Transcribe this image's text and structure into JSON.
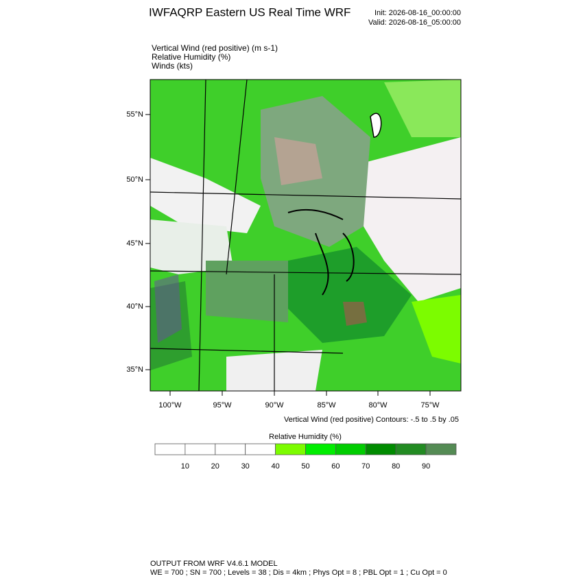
{
  "header": {
    "title": "IWFAQRP Eastern US Real Time WRF",
    "init": "Init: 2026-08-16_00:00:00",
    "valid": "Valid: 2026-08-16_05:00:00"
  },
  "fields": [
    "Vertical Wind (red positive)   (m s-1)",
    "Relative Humidity   (%)",
    "Winds   (kts)"
  ],
  "map": {
    "lat_labels": [
      "55°N",
      "50°N",
      "45°N",
      "40°N",
      "35°N"
    ],
    "lon_labels": [
      "100°W",
      "95°W",
      "90°W",
      "85°W",
      "80°W",
      "75°W"
    ],
    "contour_note": "Vertical Wind (red positive) Contours: -.5 to .5 by .05"
  },
  "colorbar": {
    "title": "Relative Humidity  (%)",
    "labels": [
      "10",
      "20",
      "30",
      "40",
      "50",
      "60",
      "70",
      "80",
      "90"
    ],
    "colors": [
      "#ffffff",
      "#ffffff",
      "#ffffff",
      "#ffffff",
      "#7cfc00",
      "#00ee00",
      "#00cd00",
      "#008b00",
      "#228b22",
      "#548b54"
    ]
  },
  "footer": {
    "line1": "OUTPUT FROM WRF V4.6.1 MODEL",
    "line2": "WE = 700 ; SN = 700 ; Levels = 38 ; Dis = 4km ; Phys Opt = 8 ; PBL Opt = 1 ; Cu Opt = 0"
  }
}
